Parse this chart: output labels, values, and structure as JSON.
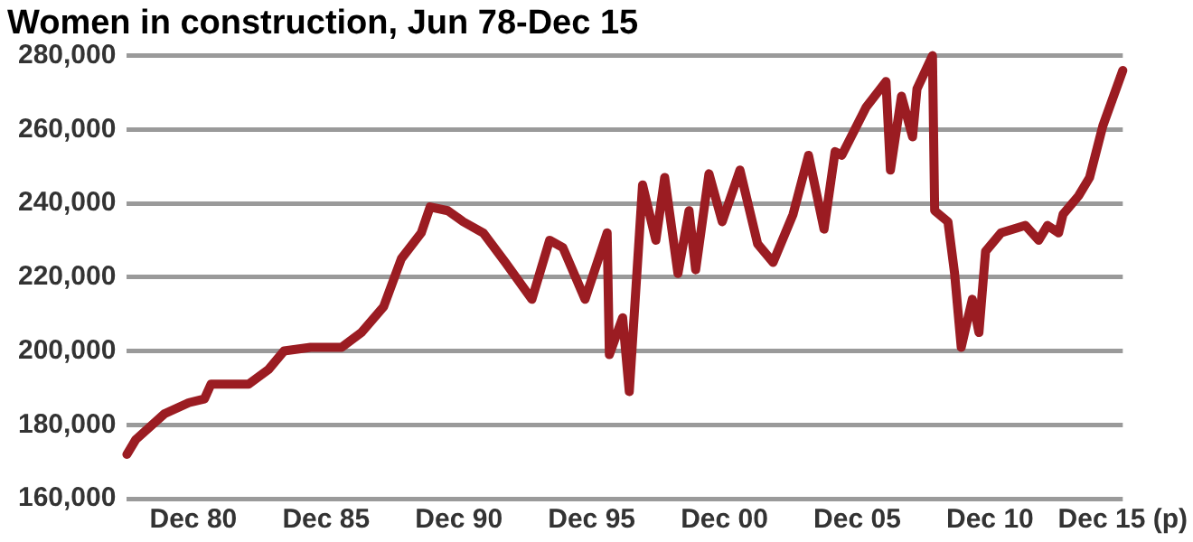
{
  "chart_data": {
    "type": "line",
    "title": "Women in construction, Jun 78-Dec 15",
    "x": [
      "1978-06",
      "1978-10",
      "1979-11",
      "1980-10",
      "1981-05",
      "1981-08",
      "1983-01",
      "1983-10",
      "1984-05",
      "1985-05",
      "1986-07",
      "1987-04",
      "1988-02",
      "1988-10",
      "1989-07",
      "1989-11",
      "1990-07",
      "1991-02",
      "1991-11",
      "1992-09",
      "1993-09",
      "1994-05",
      "1994-11",
      "1995-09",
      "1996-07",
      "1996-08",
      "1997-02",
      "1997-05",
      "1997-11",
      "1998-05",
      "1998-09",
      "1999-03",
      "1999-08",
      "1999-11",
      "2000-05",
      "2000-11",
      "2001-07",
      "2002-03",
      "2002-10",
      "2003-07",
      "2004-02",
      "2004-09",
      "2005-02",
      "2005-05",
      "2006-04",
      "2007-01",
      "2007-03",
      "2007-08",
      "2008-01",
      "2008-03",
      "2008-10",
      "2008-11",
      "2009-05",
      "2009-08",
      "2009-11",
      "2010-04",
      "2010-07",
      "2010-10",
      "2011-05",
      "2012-04",
      "2012-10",
      "2013-02",
      "2013-07",
      "2013-09",
      "2014-04",
      "2014-09",
      "2015-03",
      "2015-12"
    ],
    "series": [
      {
        "color": "#9b1c22",
        "values": [
          172000,
          176000,
          183000,
          186000,
          187000,
          191000,
          191000,
          195000,
          200000,
          201000,
          201000,
          205000,
          212000,
          225000,
          232000,
          239000,
          238000,
          235000,
          232000,
          224000,
          214000,
          230000,
          228000,
          214000,
          232000,
          199000,
          209000,
          189000,
          245000,
          230000,
          247000,
          221000,
          238000,
          222000,
          248000,
          235000,
          249000,
          229000,
          224000,
          237000,
          253000,
          233000,
          254000,
          253000,
          266000,
          273000,
          249000,
          269000,
          258000,
          271000,
          280000,
          238000,
          235000,
          221000,
          201000,
          214000,
          205000,
          227000,
          232000,
          234000,
          230000,
          234000,
          232000,
          237000,
          242000,
          247000,
          261000,
          276000
        ]
      }
    ],
    "xlim": [
      "1978-06",
      "2015-12"
    ],
    "xticks": [
      {
        "value": "1980-12",
        "label": "Dec 80"
      },
      {
        "value": "1985-12",
        "label": "Dec 85"
      },
      {
        "value": "1990-12",
        "label": "Dec 90"
      },
      {
        "value": "1995-12",
        "label": "Dec 95"
      },
      {
        "value": "2000-12",
        "label": "Dec 00"
      },
      {
        "value": "2005-12",
        "label": "Dec 05"
      },
      {
        "value": "2010-12",
        "label": "Dec 10"
      },
      {
        "value": "2015-12",
        "label": "Dec 15 (p)"
      }
    ],
    "ylim": [
      160000,
      280000
    ],
    "yticks": [
      {
        "value": 160000,
        "label": "160,000"
      },
      {
        "value": 180000,
        "label": "180,000"
      },
      {
        "value": 200000,
        "label": "200,000"
      },
      {
        "value": 220000,
        "label": "220,000"
      },
      {
        "value": 240000,
        "label": "240,000"
      },
      {
        "value": 260000,
        "label": "260,000"
      },
      {
        "value": 280000,
        "label": "280,000"
      }
    ],
    "grid": "y",
    "legend": false,
    "marker": "none",
    "line_style": "solid"
  }
}
